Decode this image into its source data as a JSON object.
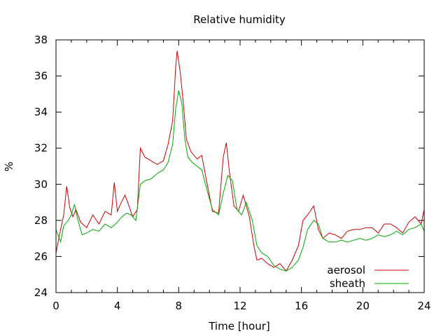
{
  "chart_data": {
    "type": "line",
    "title": "Relative humidity",
    "xlabel": "Time [hour]",
    "ylabel": "%",
    "xlim": [
      0,
      24
    ],
    "ylim": [
      24,
      38
    ],
    "xticks": [
      0,
      4,
      8,
      12,
      16,
      20,
      24
    ],
    "yticks": [
      24,
      26,
      28,
      30,
      32,
      34,
      36,
      38
    ],
    "grid": false,
    "legend_position": "bottom-right",
    "series": [
      {
        "name": "aerosol",
        "color": "#cc0000",
        "x": [
          0,
          0.3,
          0.5,
          0.7,
          0.9,
          1.1,
          1.3,
          1.6,
          2.0,
          2.4,
          2.8,
          3.2,
          3.6,
          3.8,
          4.0,
          4.2,
          4.5,
          4.8,
          5.0,
          5.3,
          5.5,
          5.8,
          6.2,
          6.6,
          7.0,
          7.3,
          7.6,
          7.8,
          7.9,
          8.1,
          8.3,
          8.5,
          8.8,
          9.2,
          9.5,
          9.9,
          10.2,
          10.6,
          10.9,
          11.1,
          11.3,
          11.6,
          11.9,
          12.2,
          12.6,
          12.9,
          13.1,
          13.4,
          13.8,
          14.2,
          14.6,
          15.0,
          15.4,
          15.8,
          16.1,
          16.4,
          16.8,
          17.1,
          17.4,
          17.8,
          18.2,
          18.6,
          19.0,
          19.4,
          19.8,
          20.2,
          20.6,
          21.0,
          21.4,
          21.8,
          22.2,
          22.6,
          23.0,
          23.4,
          23.8,
          24.0
        ],
        "values": [
          26.2,
          27.5,
          28.3,
          29.9,
          28.7,
          28.2,
          28.6,
          27.9,
          27.6,
          28.3,
          27.8,
          28.5,
          28.3,
          30.1,
          28.5,
          28.9,
          29.4,
          28.7,
          28.2,
          28.6,
          32.0,
          31.5,
          31.3,
          31.1,
          31.3,
          32.2,
          33.5,
          36.5,
          37.4,
          36.2,
          34.5,
          32.5,
          31.8,
          31.4,
          31.6,
          29.8,
          28.5,
          28.4,
          31.5,
          32.3,
          30.7,
          28.8,
          28.5,
          29.4,
          28.2,
          26.6,
          25.8,
          25.9,
          25.6,
          25.4,
          25.6,
          25.2,
          25.8,
          26.6,
          28.0,
          28.3,
          28.8,
          27.5,
          27.0,
          27.3,
          27.2,
          27.0,
          27.4,
          27.5,
          27.5,
          27.6,
          27.6,
          27.3,
          27.8,
          27.8,
          27.6,
          27.3,
          27.9,
          28.2,
          27.8,
          28.6
        ]
      },
      {
        "name": "sheath",
        "color": "#00aa00",
        "x": [
          0,
          0.3,
          0.5,
          0.8,
          1.0,
          1.2,
          1.4,
          1.7,
          2.0,
          2.4,
          2.8,
          3.2,
          3.6,
          4.0,
          4.3,
          4.6,
          4.9,
          5.2,
          5.5,
          5.8,
          6.2,
          6.6,
          7.0,
          7.3,
          7.6,
          7.8,
          8.0,
          8.2,
          8.4,
          8.6,
          8.9,
          9.2,
          9.5,
          9.9,
          10.2,
          10.6,
          10.9,
          11.2,
          11.5,
          11.8,
          12.1,
          12.4,
          12.8,
          13.1,
          13.4,
          13.8,
          14.2,
          14.6,
          15.0,
          15.4,
          15.8,
          16.1,
          16.4,
          16.8,
          17.1,
          17.4,
          17.8,
          18.2,
          18.6,
          19.0,
          19.4,
          19.8,
          20.2,
          20.6,
          21.0,
          21.4,
          21.8,
          22.2,
          22.6,
          23.0,
          23.4,
          23.8,
          24.0
        ],
        "values": [
          27.5,
          26.8,
          27.7,
          28.0,
          28.3,
          28.9,
          28.1,
          27.2,
          27.3,
          27.5,
          27.4,
          27.8,
          27.6,
          27.9,
          28.2,
          28.4,
          28.3,
          28.0,
          30.0,
          30.2,
          30.3,
          30.6,
          30.8,
          31.2,
          32.2,
          34.2,
          35.2,
          34.5,
          32.5,
          31.5,
          31.2,
          31.0,
          30.8,
          29.5,
          28.6,
          28.3,
          29.5,
          30.5,
          30.2,
          28.6,
          28.3,
          29.0,
          28.0,
          26.6,
          26.2,
          26.0,
          25.5,
          25.3,
          25.2,
          25.4,
          25.8,
          26.5,
          27.5,
          28.0,
          27.8,
          27.0,
          26.8,
          26.8,
          26.9,
          26.8,
          26.9,
          27.0,
          26.9,
          27.0,
          27.2,
          27.1,
          27.2,
          27.4,
          27.2,
          27.5,
          27.6,
          27.8,
          27.4
        ]
      }
    ]
  }
}
